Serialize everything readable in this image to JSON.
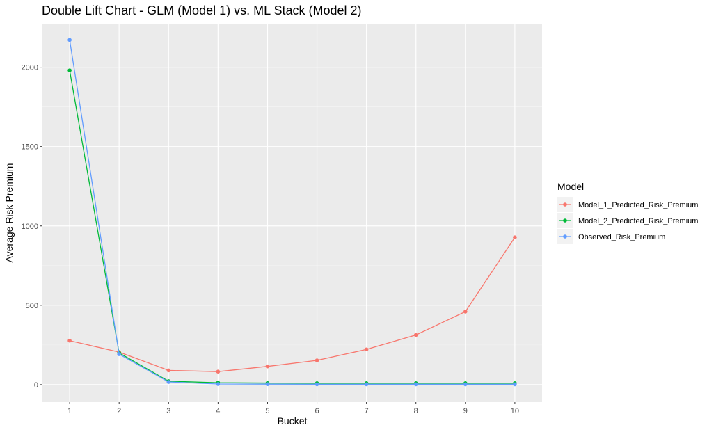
{
  "chart_data": {
    "type": "line",
    "title": "Double Lift Chart - GLM (Model 1) vs. ML Stack (Model 2)",
    "xlabel": "Bucket",
    "ylabel": "Average Risk Premium",
    "x": [
      1,
      2,
      3,
      4,
      5,
      6,
      7,
      8,
      9,
      10
    ],
    "x_ticks": [
      "1",
      "2",
      "3",
      "4",
      "5",
      "6",
      "7",
      "8",
      "9",
      "10"
    ],
    "y_ticks": [
      "0",
      "500",
      "1000",
      "1500",
      "2000"
    ],
    "y_tick_values": [
      0,
      500,
      1000,
      1500,
      2000
    ],
    "xlim": [
      0.45,
      10.55
    ],
    "ylim": [
      -110,
      2270
    ],
    "grid": true,
    "legend": {
      "title": "Model",
      "placement": "right"
    },
    "series": [
      {
        "name": "Model_1_Predicted_Risk_Premium",
        "color": "#F8766D",
        "values": [
          277,
          205,
          90,
          82,
          115,
          153,
          222,
          313,
          460,
          928
        ]
      },
      {
        "name": "Model_2_Predicted_Risk_Premium",
        "color": "#00BA38",
        "values": [
          1980,
          200,
          22,
          12,
          10,
          9,
          9,
          9,
          9,
          9
        ]
      },
      {
        "name": "Observed_Risk_Premium",
        "color": "#619CFF",
        "values": [
          2172,
          192,
          17,
          4,
          3,
          2,
          2,
          2,
          2,
          2
        ]
      }
    ]
  }
}
